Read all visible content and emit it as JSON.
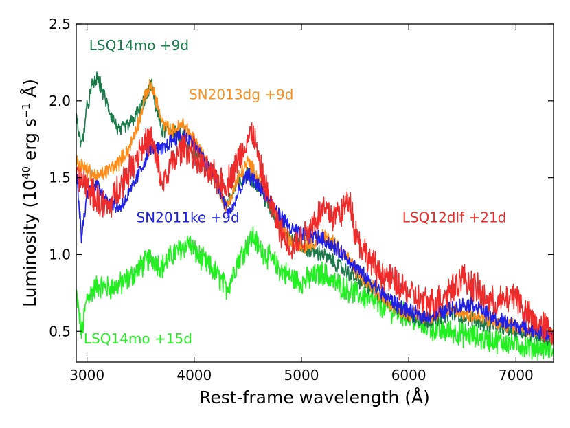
{
  "chart_data": {
    "type": "line",
    "title": "",
    "xlabel": "Rest-frame wavelength (Å)",
    "ylabel_prefix": "Luminosity (10",
    "ylabel_exp": "40",
    "ylabel_mid": " erg s",
    "ylabel_exp2": "−1",
    "ylabel_suffix": " Å)",
    "xlim": [
      2900,
      7350
    ],
    "ylim": [
      0.3,
      2.5
    ],
    "xticks": [
      3000,
      4000,
      5000,
      6000,
      7000
    ],
    "yticks": [
      0.5,
      1.0,
      1.5,
      2.0,
      2.5
    ],
    "xtick_labels": [
      "3000",
      "4000",
      "5000",
      "6000",
      "7000"
    ],
    "ytick_labels": [
      "0.5",
      "1.0",
      "1.5",
      "2.0",
      "2.5"
    ],
    "grid": false,
    "series": [
      {
        "name": "LSQ14mo +15d",
        "color": "#22ee22",
        "x": [
          2900,
          2950,
          3000,
          3100,
          3200,
          3300,
          3400,
          3500,
          3600,
          3700,
          3800,
          3900,
          3950,
          4000,
          4100,
          4200,
          4300,
          4350,
          4400,
          4500,
          4550,
          4600,
          4700,
          4800,
          4900,
          5000,
          5100,
          5200,
          5300,
          5400,
          5500,
          5600,
          5700,
          5800,
          5900,
          6000,
          6100,
          6200,
          6300,
          6400,
          6500,
          6600,
          6700,
          6800,
          6900,
          7000,
          7100,
          7200,
          7350
        ],
        "y": [
          0.75,
          0.48,
          0.72,
          0.8,
          0.78,
          0.8,
          0.85,
          0.92,
          0.98,
          0.92,
          1.0,
          1.05,
          1.08,
          1.02,
          0.95,
          0.88,
          0.78,
          0.85,
          0.95,
          1.07,
          1.12,
          1.05,
          0.98,
          0.9,
          0.85,
          0.82,
          0.85,
          0.88,
          0.82,
          0.78,
          0.75,
          0.72,
          0.68,
          0.65,
          0.62,
          0.6,
          0.55,
          0.52,
          0.5,
          0.5,
          0.48,
          0.47,
          0.45,
          0.44,
          0.43,
          0.42,
          0.4,
          0.4,
          0.38
        ]
      },
      {
        "name": "LSQ14mo +9d",
        "color": "#1a7a4a",
        "x": [
          2900,
          2950,
          3000,
          3050,
          3100,
          3150,
          3200,
          3300,
          3400,
          3500,
          3550,
          3600,
          3650,
          3700,
          3800,
          3900,
          4000,
          4100,
          4200,
          4250,
          4300,
          4400,
          4500,
          4600,
          4700,
          4800,
          4900,
          5000,
          5100,
          5200,
          5300,
          5400,
          5500,
          5600,
          5700,
          5800,
          5900,
          6000,
          6100,
          6200,
          6300,
          6400,
          6500,
          6600,
          6700,
          6800,
          6900,
          7000,
          7100,
          7200,
          7350
        ],
        "y": [
          1.9,
          1.7,
          1.95,
          2.1,
          2.15,
          2.05,
          1.95,
          1.8,
          1.85,
          1.95,
          2.02,
          2.1,
          1.95,
          1.8,
          1.82,
          1.75,
          1.65,
          1.6,
          1.5,
          1.38,
          1.32,
          1.45,
          1.52,
          1.45,
          1.3,
          1.2,
          1.1,
          1.05,
          1.02,
          1.0,
          0.95,
          0.9,
          0.85,
          0.8,
          0.75,
          0.7,
          0.65,
          0.6,
          0.58,
          0.57,
          0.6,
          0.62,
          0.6,
          0.58,
          0.55,
          0.55,
          0.52,
          0.5,
          0.5,
          0.48,
          0.45
        ]
      },
      {
        "name": "SN2013dg +9d",
        "color": "#ff8c1a",
        "x": [
          2900,
          3000,
          3100,
          3200,
          3300,
          3400,
          3500,
          3550,
          3600,
          3650,
          3700,
          3800,
          3900,
          4000,
          4100,
          4200,
          4300,
          4400,
          4500,
          4600,
          4700,
          4800,
          4900,
          5000,
          5100,
          5200,
          5300,
          5400,
          5500,
          5600,
          5700,
          5800,
          5900,
          6000,
          6100,
          6200,
          6300,
          6400,
          6500,
          6600,
          6700,
          6800,
          6900,
          7000,
          7100,
          7200,
          7350
        ],
        "y": [
          1.6,
          1.55,
          1.5,
          1.55,
          1.6,
          1.7,
          1.9,
          2.05,
          2.1,
          2.0,
          1.85,
          1.8,
          1.85,
          1.75,
          1.62,
          1.5,
          1.3,
          1.48,
          1.6,
          1.5,
          1.35,
          1.2,
          1.08,
          1.05,
          1.08,
          1.12,
          1.08,
          1.0,
          0.9,
          0.82,
          0.75,
          0.7,
          0.65,
          0.62,
          0.6,
          0.6,
          0.62,
          0.65,
          0.62,
          0.6,
          0.58,
          0.56,
          0.55,
          0.53,
          0.52,
          0.5,
          0.48
        ]
      },
      {
        "name": "SN2011ke +9d",
        "color": "#1f1fe6",
        "x": [
          2900,
          2950,
          3000,
          3100,
          3200,
          3300,
          3400,
          3500,
          3600,
          3700,
          3800,
          3900,
          4000,
          4100,
          4200,
          4300,
          4350,
          4400,
          4500,
          4600,
          4700,
          4800,
          4900,
          5000,
          5100,
          5200,
          5300,
          5400,
          5500,
          5600,
          5700,
          5800,
          5900,
          6000,
          6100,
          6200,
          6300,
          6400,
          6500,
          6600,
          6700,
          6800,
          6900,
          7000,
          7100,
          7200,
          7350
        ],
        "y": [
          1.55,
          1.1,
          1.4,
          1.45,
          1.35,
          1.3,
          1.4,
          1.55,
          1.7,
          1.68,
          1.75,
          1.78,
          1.72,
          1.6,
          1.5,
          1.3,
          1.28,
          1.38,
          1.52,
          1.45,
          1.35,
          1.25,
          1.17,
          1.13,
          1.12,
          1.1,
          1.05,
          1.0,
          0.92,
          0.85,
          0.78,
          0.72,
          0.67,
          0.63,
          0.6,
          0.6,
          0.62,
          0.65,
          0.67,
          0.68,
          0.63,
          0.58,
          0.56,
          0.54,
          0.52,
          0.5,
          0.47
        ]
      },
      {
        "name": "LSQ12dlf +21d",
        "color": "#ee2a2a",
        "x": [
          2900,
          3000,
          3100,
          3200,
          3300,
          3400,
          3500,
          3600,
          3700,
          3800,
          3900,
          4000,
          4100,
          4200,
          4300,
          4400,
          4500,
          4550,
          4600,
          4700,
          4800,
          4900,
          5000,
          5100,
          5200,
          5300,
          5400,
          5450,
          5500,
          5600,
          5700,
          5800,
          5900,
          6000,
          6100,
          6200,
          6300,
          6400,
          6500,
          6600,
          6700,
          6800,
          6900,
          7000,
          7100,
          7200,
          7350
        ],
        "y": [
          1.5,
          1.45,
          1.35,
          1.3,
          1.45,
          1.55,
          1.7,
          1.75,
          1.45,
          1.6,
          1.7,
          1.65,
          1.55,
          1.5,
          1.45,
          1.6,
          1.75,
          1.8,
          1.6,
          1.35,
          1.15,
          1.05,
          1.1,
          1.2,
          1.3,
          1.25,
          1.3,
          1.38,
          1.15,
          1.0,
          0.9,
          0.85,
          0.8,
          0.75,
          0.7,
          0.68,
          0.72,
          0.78,
          0.85,
          0.8,
          0.72,
          0.68,
          0.7,
          0.75,
          0.6,
          0.55,
          0.5
        ]
      }
    ],
    "annotations": [
      {
        "text": "LSQ14mo +9d",
        "color": "#1a7a4a",
        "x": 3020,
        "y": 2.33
      },
      {
        "text": "SN2013dg +9d",
        "color": "#ff8c1a",
        "x": 3950,
        "y": 2.01
      },
      {
        "text": "SN2011ke +9d",
        "color": "#1f1fe6",
        "x": 3460,
        "y": 1.21
      },
      {
        "text": "LSQ12dlf +21d",
        "color": "#ee2a2a",
        "x": 5940,
        "y": 1.21
      },
      {
        "text": "LSQ14mo +15d",
        "color": "#22ee22",
        "x": 2970,
        "y": 0.42
      }
    ]
  }
}
